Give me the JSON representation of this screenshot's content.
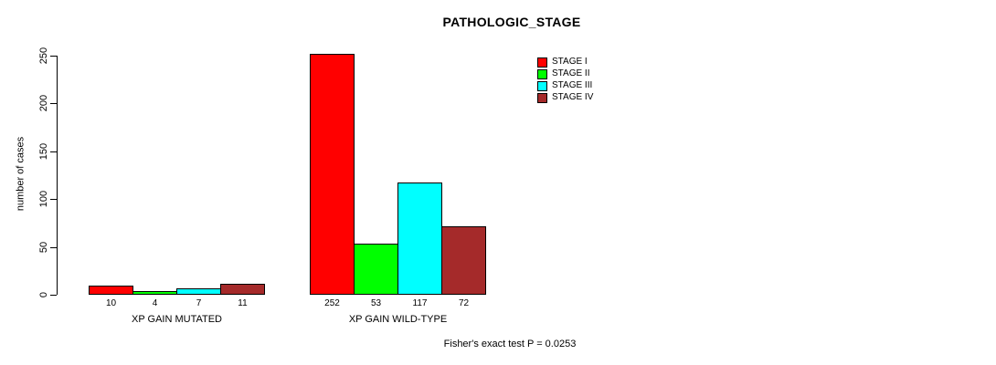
{
  "chart_data": {
    "type": "bar",
    "title": "PATHOLOGIC_STAGE",
    "ylabel": "number of cases",
    "xlabel": "",
    "ylim": [
      0,
      250
    ],
    "yticks": [
      0,
      50,
      100,
      150,
      200,
      250
    ],
    "grid": false,
    "legend_position": "top-right",
    "categories": [
      "XP GAIN MUTATED",
      "XP GAIN WILD-TYPE"
    ],
    "series": [
      {
        "name": "STAGE I",
        "color": "#ff0000",
        "values": [
          10,
          252
        ]
      },
      {
        "name": "STAGE II",
        "color": "#00ff00",
        "values": [
          4,
          53
        ]
      },
      {
        "name": "STAGE III",
        "color": "#00ffff",
        "values": [
          7,
          117
        ]
      },
      {
        "name": "STAGE IV",
        "color": "#a52a2a",
        "values": [
          11,
          72
        ]
      }
    ],
    "bar_value_labels": [
      [
        10,
        4,
        7,
        11
      ],
      [
        252,
        53,
        117,
        72
      ]
    ],
    "footnote": "Fisher's exact test P = 0.0253"
  },
  "colors": {
    "background": "#ffffff",
    "axis": "#000000",
    "bar_border": "#000000"
  }
}
